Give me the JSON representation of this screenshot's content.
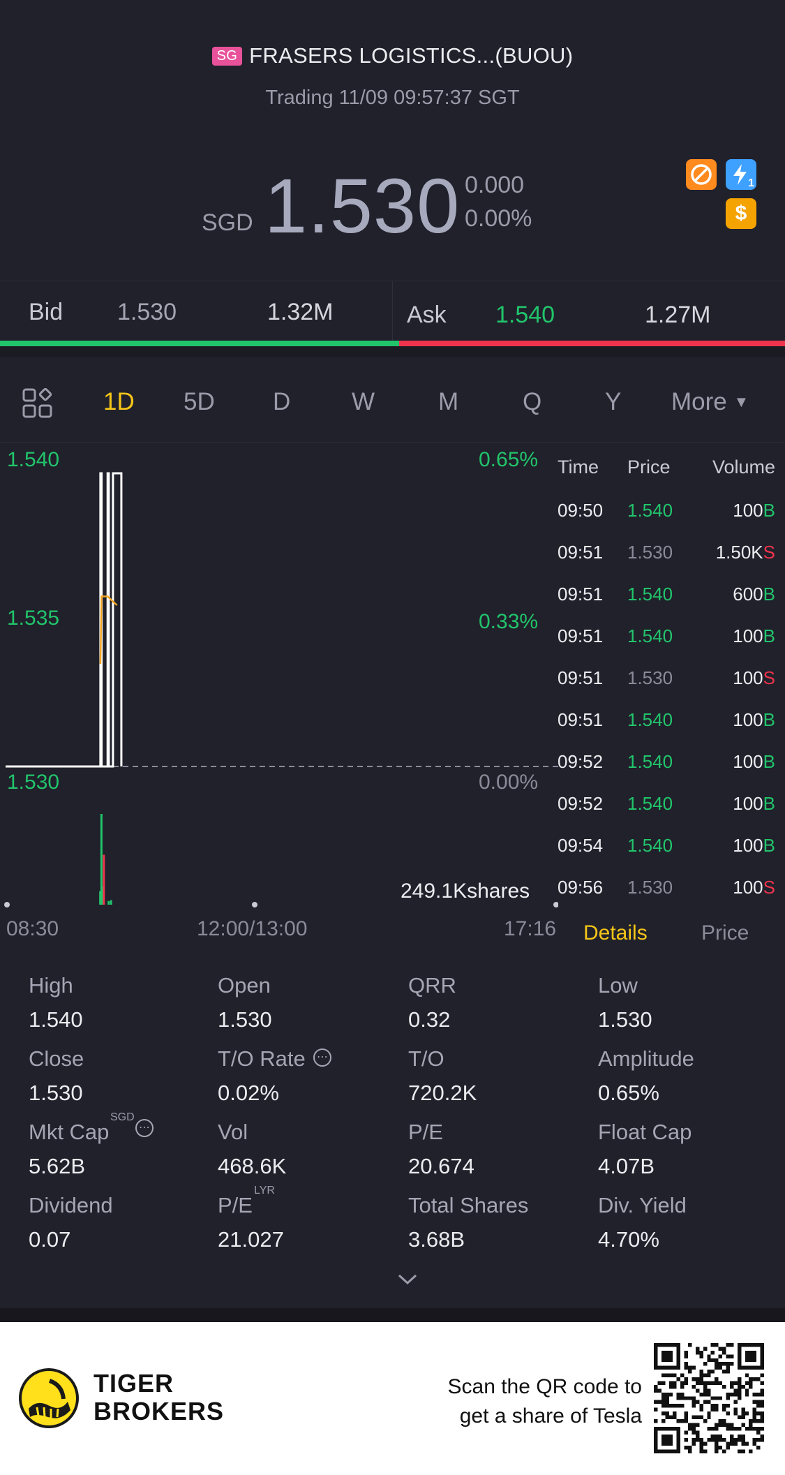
{
  "header": {
    "market_badge": "SG",
    "name": "FRASERS LOGISTICS...(BUOU)",
    "status": "Trading 11/09 09:57:37 SGT"
  },
  "quote": {
    "currency": "SGD",
    "price": "1.530",
    "change": "0.000",
    "change_pct": "0.00%",
    "icons": [
      "no-short-icon",
      "lightning-level1-icon",
      "dollar-icon"
    ],
    "dollar_symbol": "$",
    "level_number": "1"
  },
  "bid_ask": {
    "bid_label": "Bid",
    "bid_price": "1.530",
    "bid_size": "1.32M",
    "ask_label": "Ask",
    "ask_price": "1.540",
    "ask_size": "1.27M",
    "bid_ratio": 0.508,
    "colors": {
      "bid": "#22c46b",
      "ask": "#f0344d"
    }
  },
  "tabs": {
    "items": [
      "1D",
      "5D",
      "D",
      "W",
      "M",
      "Q",
      "Y",
      "More"
    ],
    "active": "1D"
  },
  "chart_data": {
    "type": "line",
    "y_left_labels": [
      "1.540",
      "1.535",
      "1.530"
    ],
    "y_right_labels": [
      "0.65%",
      "0.33%",
      "0.00%"
    ],
    "x_labels": [
      "08:30",
      "12:00/13:00",
      "17:16"
    ],
    "volume_label": "249.1Kshares",
    "ylim": [
      1.53,
      1.54
    ],
    "prev_close": 1.53,
    "price_series": [
      {
        "t": "08:30",
        "v": 1.53
      },
      {
        "t": "09:48",
        "v": 1.53
      },
      {
        "t": "09:49",
        "v": 1.54
      },
      {
        "t": "09:50",
        "v": 1.53
      },
      {
        "t": "09:54",
        "v": 1.53
      },
      {
        "t": "09:55",
        "v": 1.54
      },
      {
        "t": "09:56",
        "v": 1.53
      },
      {
        "t": "09:56",
        "v": 1.54
      },
      {
        "t": "09:57",
        "v": 1.54
      },
      {
        "t": "09:57",
        "v": 1.53
      }
    ],
    "avg_series": [
      {
        "t": "09:49",
        "v": 1.5335
      },
      {
        "t": "09:50",
        "v": 1.5358
      },
      {
        "t": "09:55",
        "v": 1.5358
      },
      {
        "t": "09:57",
        "v": 1.5355
      }
    ],
    "volume_bars": [
      {
        "t": "09:48",
        "v": 0.15,
        "side": "buy"
      },
      {
        "t": "09:49",
        "v": 1.0,
        "side": "buy"
      },
      {
        "t": "09:50",
        "v": 0.2,
        "side": "buy"
      },
      {
        "t": "09:51",
        "v": 0.55,
        "side": "sell"
      },
      {
        "t": "09:55",
        "v": 0.04,
        "side": "buy"
      },
      {
        "t": "09:57",
        "v": 0.05,
        "side": "buy"
      }
    ]
  },
  "trades": {
    "headers": {
      "time": "Time",
      "price": "Price",
      "volume": "Volume"
    },
    "rows": [
      {
        "time": "09:50",
        "price": "1.540",
        "vol": "100",
        "side": "B"
      },
      {
        "time": "09:51",
        "price": "1.530",
        "vol": "1.50K",
        "side": "S"
      },
      {
        "time": "09:51",
        "price": "1.540",
        "vol": "600",
        "side": "B"
      },
      {
        "time": "09:51",
        "price": "1.540",
        "vol": "100",
        "side": "B"
      },
      {
        "time": "09:51",
        "price": "1.530",
        "vol": "100",
        "side": "S"
      },
      {
        "time": "09:51",
        "price": "1.540",
        "vol": "100",
        "side": "B"
      },
      {
        "time": "09:52",
        "price": "1.540",
        "vol": "100",
        "side": "B"
      },
      {
        "time": "09:52",
        "price": "1.540",
        "vol": "100",
        "side": "B"
      },
      {
        "time": "09:54",
        "price": "1.540",
        "vol": "100",
        "side": "B"
      },
      {
        "time": "09:56",
        "price": "1.530",
        "vol": "100",
        "side": "S"
      }
    ],
    "tab_details": "Details",
    "tab_price": "Price"
  },
  "stats": {
    "high_label": "High",
    "high": "1.540",
    "open_label": "Open",
    "open": "1.530",
    "qrr_label": "QRR",
    "qrr": "0.32",
    "low_label": "Low",
    "low": "1.530",
    "close_label": "Close",
    "close": "1.530",
    "to_rate_label": "T/O Rate",
    "to_rate": "0.02%",
    "to_label": "T/O",
    "to": "720.2K",
    "amplitude_label": "Amplitude",
    "amplitude": "0.65%",
    "mkt_cap_label": "Mkt Cap",
    "mkt_cap_sup": "SGD",
    "mkt_cap": "5.62B",
    "vol_label": "Vol",
    "vol": "468.6K",
    "pe_label": "P/E",
    "pe": "20.674",
    "float_cap_label": "Float Cap",
    "float_cap": "4.07B",
    "dividend_label": "Dividend",
    "dividend": "0.07",
    "pe_lyr_label": "P/E",
    "pe_lyr_sup": "LYR",
    "pe_lyr": "21.027",
    "total_shares_label": "Total Shares",
    "total_shares": "3.68B",
    "div_yield_label": "Div. Yield",
    "div_yield": "4.70%"
  },
  "footer": {
    "brand_line1": "TIGER",
    "brand_line2": "BROKERS",
    "scan_line1": "Scan the QR code to",
    "scan_line2": "get a share of Tesla"
  }
}
